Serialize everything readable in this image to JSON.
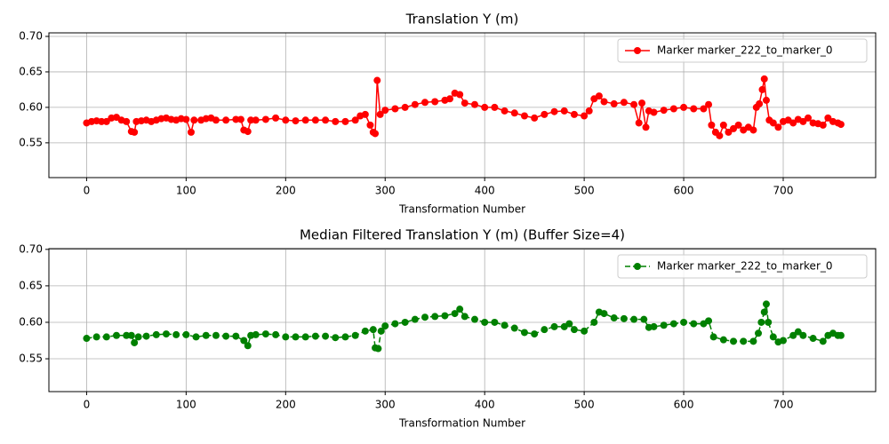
{
  "chart_data": [
    {
      "type": "line",
      "title": "Translation Y (m)",
      "xlabel": "Transformation Number",
      "grid": true,
      "legend": "upper right",
      "xlim": [
        -37.9,
        792.9
      ],
      "xticks": [
        0,
        100,
        200,
        300,
        400,
        500,
        600,
        700
      ],
      "ylim": [
        0.501,
        0.705
      ],
      "yticks": [
        {
          "value": 0.55,
          "label": "0.55"
        },
        {
          "value": 0.6,
          "label": "0.60"
        },
        {
          "value": 0.65,
          "label": "0.65"
        },
        {
          "value": 0.7,
          "label": "0.70"
        }
      ],
      "x": [
        0,
        5,
        10,
        15,
        20,
        25,
        30,
        35,
        40,
        45,
        48,
        50,
        55,
        60,
        65,
        70,
        75,
        80,
        85,
        90,
        95,
        100,
        105,
        108,
        115,
        120,
        125,
        130,
        140,
        150,
        155,
        158,
        162,
        165,
        170,
        180,
        190,
        200,
        210,
        220,
        230,
        240,
        250,
        260,
        270,
        275,
        280,
        285,
        288,
        290,
        292,
        295,
        300,
        310,
        320,
        330,
        340,
        350,
        360,
        365,
        370,
        375,
        380,
        390,
        400,
        410,
        420,
        430,
        440,
        450,
        460,
        470,
        480,
        490,
        500,
        505,
        510,
        515,
        520,
        530,
        540,
        550,
        555,
        558,
        562,
        565,
        570,
        580,
        590,
        600,
        610,
        620,
        625,
        628,
        632,
        636,
        640,
        645,
        650,
        655,
        660,
        665,
        670,
        673,
        676,
        679,
        681,
        683,
        686,
        690,
        695,
        700,
        705,
        710,
        715,
        720,
        725,
        730,
        735,
        740,
        745,
        750,
        755,
        758
      ],
      "series": [
        {
          "name": "Marker marker_222_to_marker_0",
          "color": "#ff0000",
          "linestyle": "solid",
          "values": [
            0.578,
            0.58,
            0.581,
            0.58,
            0.58,
            0.585,
            0.586,
            0.582,
            0.58,
            0.566,
            0.565,
            0.58,
            0.581,
            0.582,
            0.58,
            0.582,
            0.584,
            0.585,
            0.583,
            0.582,
            0.584,
            0.583,
            0.565,
            0.582,
            0.582,
            0.584,
            0.585,
            0.582,
            0.582,
            0.583,
            0.583,
            0.568,
            0.566,
            0.582,
            0.582,
            0.583,
            0.585,
            0.582,
            0.581,
            0.582,
            0.582,
            0.582,
            0.58,
            0.58,
            0.582,
            0.588,
            0.59,
            0.575,
            0.565,
            0.563,
            0.638,
            0.59,
            0.596,
            0.598,
            0.6,
            0.604,
            0.607,
            0.608,
            0.61,
            0.612,
            0.62,
            0.618,
            0.606,
            0.604,
            0.6,
            0.6,
            0.595,
            0.592,
            0.588,
            0.585,
            0.59,
            0.594,
            0.595,
            0.59,
            0.588,
            0.595,
            0.612,
            0.616,
            0.608,
            0.605,
            0.607,
            0.604,
            0.578,
            0.606,
            0.572,
            0.595,
            0.593,
            0.596,
            0.598,
            0.6,
            0.598,
            0.598,
            0.604,
            0.575,
            0.565,
            0.56,
            0.575,
            0.565,
            0.57,
            0.575,
            0.568,
            0.572,
            0.568,
            0.6,
            0.605,
            0.625,
            0.64,
            0.61,
            0.582,
            0.578,
            0.572,
            0.58,
            0.582,
            0.578,
            0.583,
            0.58,
            0.585,
            0.578,
            0.577,
            0.575,
            0.585,
            0.58,
            0.578,
            0.576
          ]
        }
      ]
    },
    {
      "type": "line",
      "title": "Median Filtered Translation Y (m) (Buffer Size=4)",
      "xlabel": "Transformation Number",
      "grid": true,
      "legend": "upper right",
      "xlim": [
        -37.9,
        792.9
      ],
      "xticks": [
        0,
        100,
        200,
        300,
        400,
        500,
        600,
        700
      ],
      "ylim": [
        0.505,
        0.701
      ],
      "yticks": [
        {
          "value": 0.55,
          "label": "0.55"
        },
        {
          "value": 0.6,
          "label": "0.60"
        },
        {
          "value": 0.65,
          "label": "0.65"
        },
        {
          "value": 0.7,
          "label": "0.70"
        }
      ],
      "x": [
        0,
        10,
        20,
        30,
        40,
        45,
        48,
        52,
        60,
        70,
        80,
        90,
        100,
        110,
        120,
        130,
        140,
        150,
        158,
        162,
        165,
        170,
        180,
        190,
        200,
        210,
        220,
        230,
        240,
        250,
        260,
        270,
        280,
        288,
        290,
        293,
        296,
        300,
        310,
        320,
        330,
        340,
        350,
        360,
        370,
        375,
        380,
        390,
        400,
        410,
        420,
        430,
        440,
        450,
        460,
        470,
        480,
        485,
        490,
        500,
        510,
        515,
        520,
        530,
        540,
        550,
        560,
        565,
        570,
        580,
        590,
        600,
        610,
        620,
        625,
        630,
        640,
        650,
        660,
        670,
        675,
        678,
        681,
        683,
        685,
        690,
        695,
        700,
        710,
        715,
        720,
        730,
        740,
        745,
        750,
        755,
        758
      ],
      "series": [
        {
          "name": "Marker marker_222_to_marker_0",
          "color": "#008000",
          "linestyle": "dashed",
          "values": [
            0.578,
            0.58,
            0.58,
            0.582,
            0.582,
            0.582,
            0.572,
            0.58,
            0.581,
            0.583,
            0.584,
            0.583,
            0.583,
            0.58,
            0.582,
            0.582,
            0.581,
            0.581,
            0.575,
            0.568,
            0.582,
            0.583,
            0.584,
            0.583,
            0.58,
            0.58,
            0.58,
            0.581,
            0.581,
            0.579,
            0.58,
            0.582,
            0.588,
            0.59,
            0.565,
            0.564,
            0.588,
            0.595,
            0.598,
            0.6,
            0.604,
            0.607,
            0.608,
            0.609,
            0.612,
            0.618,
            0.608,
            0.604,
            0.6,
            0.6,
            0.596,
            0.592,
            0.586,
            0.584,
            0.59,
            0.594,
            0.594,
            0.598,
            0.59,
            0.588,
            0.6,
            0.614,
            0.612,
            0.606,
            0.605,
            0.604,
            0.604,
            0.593,
            0.594,
            0.596,
            0.598,
            0.6,
            0.598,
            0.598,
            0.602,
            0.58,
            0.576,
            0.574,
            0.574,
            0.574,
            0.585,
            0.6,
            0.614,
            0.625,
            0.6,
            0.58,
            0.573,
            0.575,
            0.582,
            0.587,
            0.582,
            0.578,
            0.574,
            0.582,
            0.585,
            0.582,
            0.582
          ]
        }
      ]
    }
  ]
}
